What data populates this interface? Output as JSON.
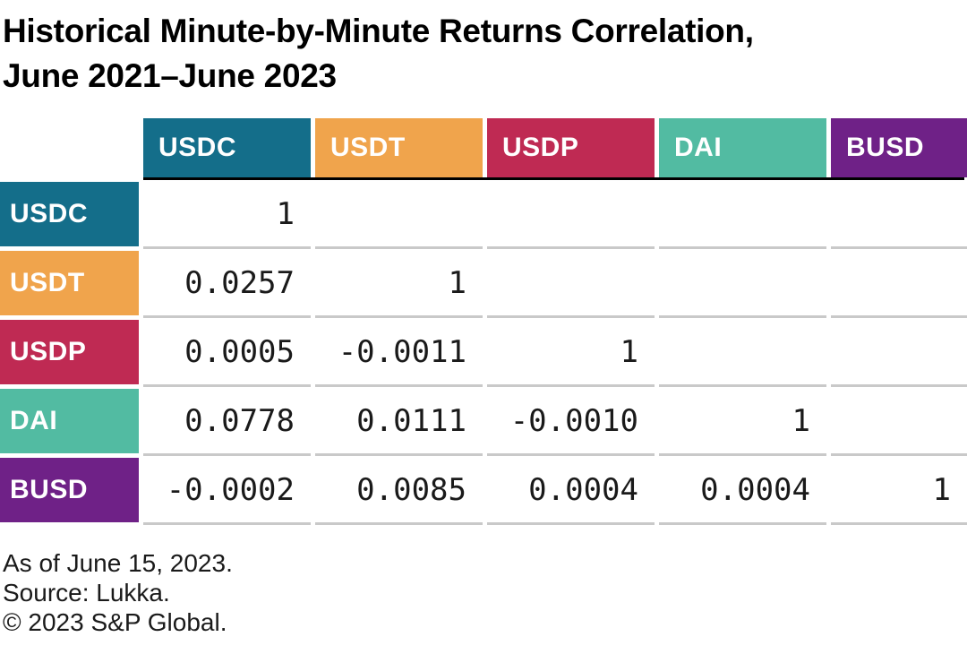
{
  "page": {
    "background": "#FFFFFF"
  },
  "title": {
    "line1": "Historical Minute-by-Minute Returns Correlation,",
    "line2": "June 2021–June 2023"
  },
  "table": {
    "columns": [
      {
        "label": "USDC",
        "color": "#146E8A"
      },
      {
        "label": "USDT",
        "color": "#F0A44C"
      },
      {
        "label": "USDP",
        "color": "#BF2A53"
      },
      {
        "label": "DAI",
        "color": "#52BBA2"
      },
      {
        "label": "BUSD",
        "color": "#6F2187"
      }
    ],
    "rows": [
      {
        "label": "USDC",
        "color": "#146E8A",
        "cells": [
          "1",
          "",
          "",
          "",
          ""
        ]
      },
      {
        "label": "USDT",
        "color": "#F0A44C",
        "cells": [
          "0.0257",
          "1",
          "",
          "",
          ""
        ]
      },
      {
        "label": "USDP",
        "color": "#BF2A53",
        "cells": [
          "0.0005",
          "-0.0011",
          "1",
          "",
          ""
        ]
      },
      {
        "label": "DAI",
        "color": "#52BBA2",
        "cells": [
          "0.0778",
          "0.0111",
          "-0.0010",
          "1",
          ""
        ]
      },
      {
        "label": "BUSD",
        "color": "#6F2187",
        "cells": [
          "-0.0002",
          "0.0085",
          "0.0004",
          "0.0004",
          "1"
        ]
      }
    ],
    "styles": {
      "header_underline_color": "#000000",
      "row_separator_color": "#C9C9C9",
      "header_text_color": "#FFFFFF",
      "value_text_color": "#1A1A1A"
    }
  },
  "footer": {
    "lines": [
      "As of June 15, 2023.",
      "Source: Lukka.",
      "© 2023 S&P Global."
    ]
  },
  "chart_data": {
    "type": "table",
    "title": "Historical Minute-by-Minute Returns Correlation, June 2021–June 2023",
    "row_labels": [
      "USDC",
      "USDT",
      "USDP",
      "DAI",
      "BUSD"
    ],
    "col_labels": [
      "USDC",
      "USDT",
      "USDP",
      "DAI",
      "BUSD"
    ],
    "matrix": [
      [
        1,
        null,
        null,
        null,
        null
      ],
      [
        0.0257,
        1,
        null,
        null,
        null
      ],
      [
        0.0005,
        -0.0011,
        1,
        null,
        null
      ],
      [
        0.0778,
        0.0111,
        -0.001,
        1,
        null
      ],
      [
        -0.0002,
        0.0085,
        0.0004,
        0.0004,
        1
      ]
    ],
    "legend_position": "none",
    "grid": "row-separators",
    "notes": [
      "As of June 15, 2023.",
      "Source: Lukka.",
      "© 2023 S&P Global."
    ]
  }
}
